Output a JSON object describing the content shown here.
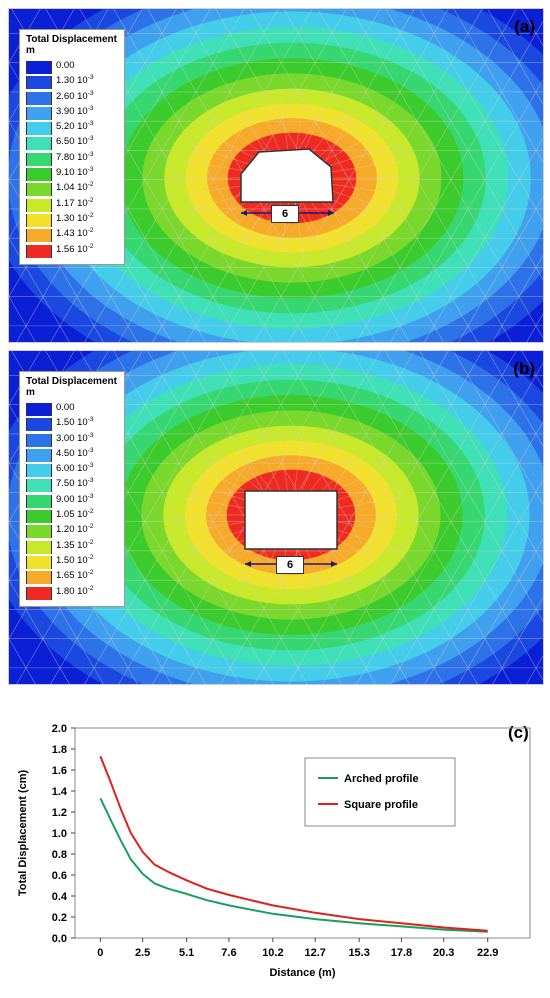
{
  "panel_a": {
    "label": "(a)",
    "legend_title": "Total Displacement",
    "legend_unit": "m",
    "dimension_label": "6",
    "legend": [
      {
        "v": "0.00",
        "e": "",
        "color": "#0a1fd6"
      },
      {
        "v": "1.30",
        "e": "10",
        "x": "-3",
        "color": "#1a48e0"
      },
      {
        "v": "2.60",
        "e": "10",
        "x": "-3",
        "color": "#2e72ea"
      },
      {
        "v": "3.90",
        "e": "10",
        "x": "-3",
        "color": "#3fa0f0"
      },
      {
        "v": "5.20",
        "e": "10",
        "x": "-3",
        "color": "#44cdea"
      },
      {
        "v": "6.50",
        "e": "10",
        "x": "-3",
        "color": "#3fe0b8"
      },
      {
        "v": "7.80",
        "e": "10",
        "x": "-3",
        "color": "#36d770"
      },
      {
        "v": "9.10",
        "e": "10",
        "x": "-3",
        "color": "#3ccb2d"
      },
      {
        "v": "1.04",
        "e": "10",
        "x": "-2",
        "color": "#7ad82c"
      },
      {
        "v": "1.17",
        "e": "10",
        "x": "-2",
        "color": "#c8e82a"
      },
      {
        "v": "1.30",
        "e": "10",
        "x": "-2",
        "color": "#f2e12a"
      },
      {
        "v": "1.43",
        "e": "10",
        "x": "-2",
        "color": "#f7a92a"
      },
      {
        "v": "1.56",
        "e": "10",
        "x": "-2",
        "color": "#ef2a22"
      }
    ]
  },
  "panel_b": {
    "label": "(b)",
    "legend_title": "Total Displacement",
    "legend_unit": "m",
    "dimension_label": "6",
    "legend": [
      {
        "v": "0.00",
        "e": "",
        "color": "#0a1fd6"
      },
      {
        "v": "1.50",
        "e": "10",
        "x": "-3",
        "color": "#1a48e0"
      },
      {
        "v": "3.00",
        "e": "10",
        "x": "-3",
        "color": "#2e72ea"
      },
      {
        "v": "4.50",
        "e": "10",
        "x": "-3",
        "color": "#3fa0f0"
      },
      {
        "v": "6.00",
        "e": "10",
        "x": "-3",
        "color": "#44cdea"
      },
      {
        "v": "7.50",
        "e": "10",
        "x": "-3",
        "color": "#3fe0b8"
      },
      {
        "v": "9.00",
        "e": "10",
        "x": "-3",
        "color": "#36d770"
      },
      {
        "v": "1.05",
        "e": "10",
        "x": "-2",
        "color": "#3ccb2d"
      },
      {
        "v": "1.20",
        "e": "10",
        "x": "-2",
        "color": "#7ad82c"
      },
      {
        "v": "1.35",
        "e": "10",
        "x": "-2",
        "color": "#c8e82a"
      },
      {
        "v": "1.50",
        "e": "10",
        "x": "-2",
        "color": "#f2e12a"
      },
      {
        "v": "1.65",
        "e": "10",
        "x": "-2",
        "color": "#f7a92a"
      },
      {
        "v": "1.80",
        "e": "10",
        "x": "-2",
        "color": "#ef2a22"
      }
    ]
  },
  "chart_data": {
    "type": "line",
    "label": "(c)",
    "xlabel": "Distance (m)",
    "ylabel": "Total Displacement (cm)",
    "ylim": [
      0,
      2.0
    ],
    "yticks": [
      "0.0",
      "0.2",
      "0.4",
      "0.6",
      "0.8",
      "1.0",
      "1.2",
      "1.4",
      "1.6",
      "1.8",
      "2.0"
    ],
    "xtick_labels": [
      "0",
      "2.5",
      "5.1",
      "7.6",
      "10.2",
      "12.7",
      "15.3",
      "17.8",
      "20.3",
      "22.9"
    ],
    "xlim": [
      -1.5,
      25.4
    ],
    "grid": false,
    "legend_position": "top-right",
    "series": [
      {
        "name": "Arched profile",
        "color": "#1a9e5f",
        "x": [
          0,
          0.6,
          1.2,
          1.8,
          2.5,
          3.2,
          4.0,
          5.1,
          6.3,
          7.6,
          8.9,
          10.2,
          12.7,
          15.3,
          17.8,
          20.3,
          22.9
        ],
        "y": [
          1.33,
          1.13,
          0.93,
          0.75,
          0.61,
          0.52,
          0.47,
          0.42,
          0.36,
          0.31,
          0.27,
          0.23,
          0.18,
          0.14,
          0.11,
          0.08,
          0.06
        ]
      },
      {
        "name": "Square profile",
        "color": "#e0201c",
        "x": [
          0,
          0.6,
          1.2,
          1.8,
          2.5,
          3.2,
          4.0,
          5.1,
          6.3,
          7.6,
          8.9,
          10.2,
          12.7,
          15.3,
          17.8,
          20.3,
          22.9
        ],
        "y": [
          1.73,
          1.49,
          1.23,
          1.0,
          0.82,
          0.7,
          0.63,
          0.55,
          0.47,
          0.41,
          0.36,
          0.31,
          0.24,
          0.18,
          0.14,
          0.1,
          0.07
        ]
      }
    ]
  }
}
